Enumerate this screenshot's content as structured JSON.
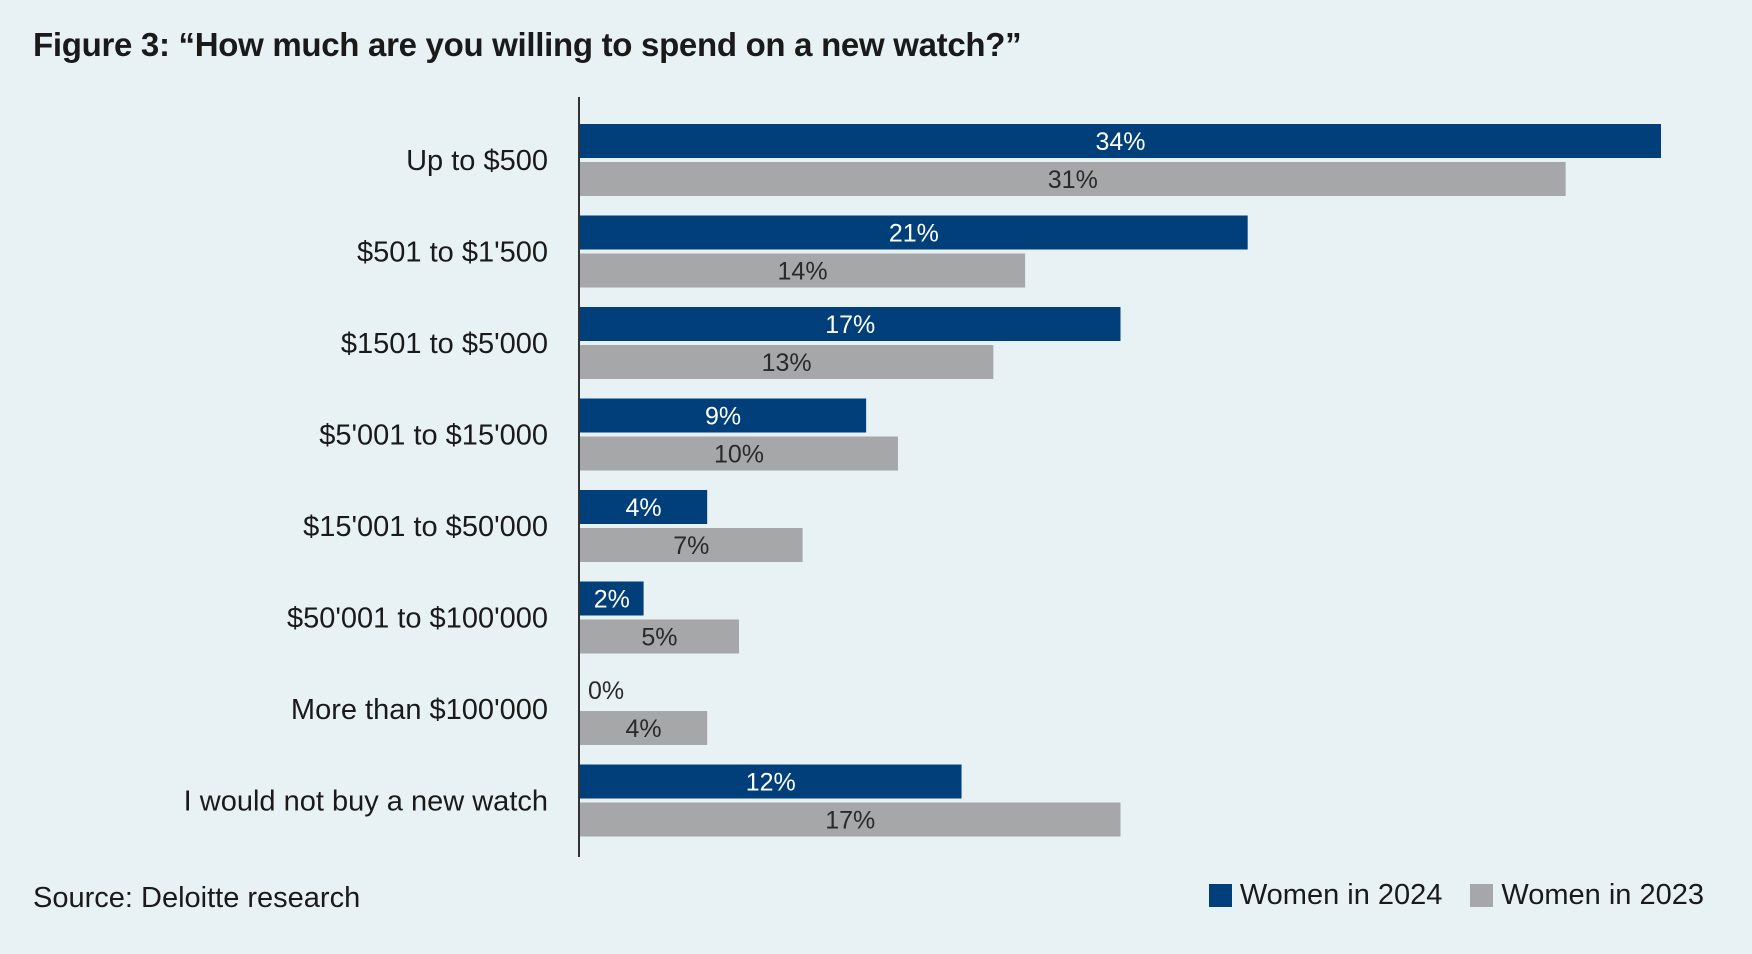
{
  "chart_data": {
    "type": "bar",
    "orientation": "horizontal",
    "title": "Figure 3: “How much are you willing to spend on a new watch?”",
    "categories": [
      "Up to $500",
      "$501 to $1'500",
      "$1501 to $5'000",
      "$5'001 to $15'000",
      "$15'001 to $50'000",
      "$50'001 to $100'000",
      "More than $100'000",
      "I would not buy a new watch"
    ],
    "series": [
      {
        "name": "Women in 2024",
        "color": "#003f7a",
        "values": [
          34,
          21,
          17,
          9,
          4,
          2,
          0,
          12
        ],
        "labels": [
          "34%",
          "21%",
          "17%",
          "9%",
          "4%",
          "2%",
          "0%",
          "12%"
        ]
      },
      {
        "name": "Women in 2023",
        "color": "#a5a7a9",
        "values": [
          31,
          14,
          13,
          10,
          7,
          5,
          4,
          17
        ],
        "labels": [
          "31%",
          "14%",
          "13%",
          "10%",
          "7%",
          "5%",
          "4%",
          "17%"
        ]
      }
    ],
    "xlim": [
      0,
      34
    ],
    "grid": false,
    "legend_position": "bottom-right"
  },
  "footer": {
    "source": "Source: Deloitte research"
  }
}
